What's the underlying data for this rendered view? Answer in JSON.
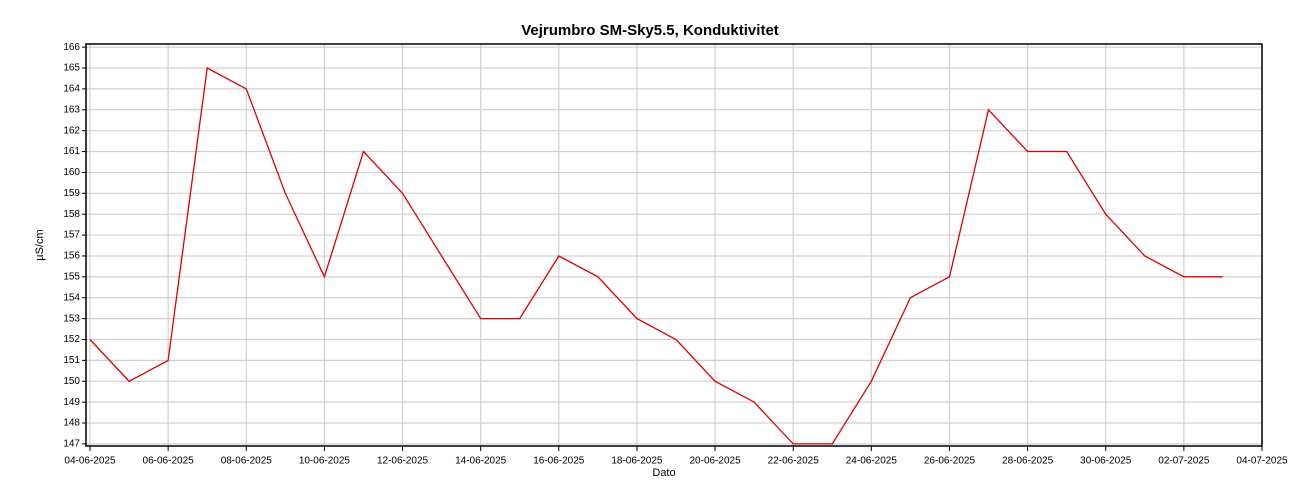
{
  "chart_data": {
    "type": "line",
    "title": "Vejrumbro SM-Sky5.5, Konduktivitet",
    "xlabel": "Dato",
    "ylabel": "µS/cm",
    "x": [
      "04-06-2025",
      "05-06-2025",
      "06-06-2025",
      "07-06-2025",
      "08-06-2025",
      "09-06-2025",
      "10-06-2025",
      "11-06-2025",
      "12-06-2025",
      "13-06-2025",
      "14-06-2025",
      "15-06-2025",
      "16-06-2025",
      "17-06-2025",
      "18-06-2025",
      "19-06-2025",
      "20-06-2025",
      "21-06-2025",
      "22-06-2025",
      "23-06-2025",
      "24-06-2025",
      "25-06-2025",
      "26-06-2025",
      "27-06-2025",
      "28-06-2025",
      "29-06-2025",
      "30-06-2025",
      "01-07-2025",
      "02-07-2025",
      "03-07-2025"
    ],
    "series": [
      {
        "name": "Konduktivitet",
        "color": "#e00000",
        "values": [
          152,
          150,
          151,
          165,
          164,
          159,
          155,
          161,
          159,
          156,
          153,
          153,
          156,
          155,
          153,
          152,
          150,
          149,
          147,
          147,
          150,
          154,
          155,
          163,
          161,
          161,
          158,
          156,
          155,
          155
        ]
      }
    ],
    "xlim": [
      "04-06-2025",
      "04-07-2025"
    ],
    "xticks": [
      "04-06-2025",
      "06-06-2025",
      "08-06-2025",
      "10-06-2025",
      "12-06-2025",
      "14-06-2025",
      "16-06-2025",
      "18-06-2025",
      "20-06-2025",
      "22-06-2025",
      "24-06-2025",
      "26-06-2025",
      "28-06-2025",
      "30-06-2025",
      "02-07-2025",
      "04-07-2025"
    ],
    "ylim": [
      146.9,
      166.15
    ],
    "yticks": [
      147,
      148,
      149,
      150,
      151,
      152,
      153,
      154,
      155,
      156,
      157,
      158,
      159,
      160,
      161,
      162,
      163,
      164,
      165,
      166
    ],
    "grid": true
  }
}
